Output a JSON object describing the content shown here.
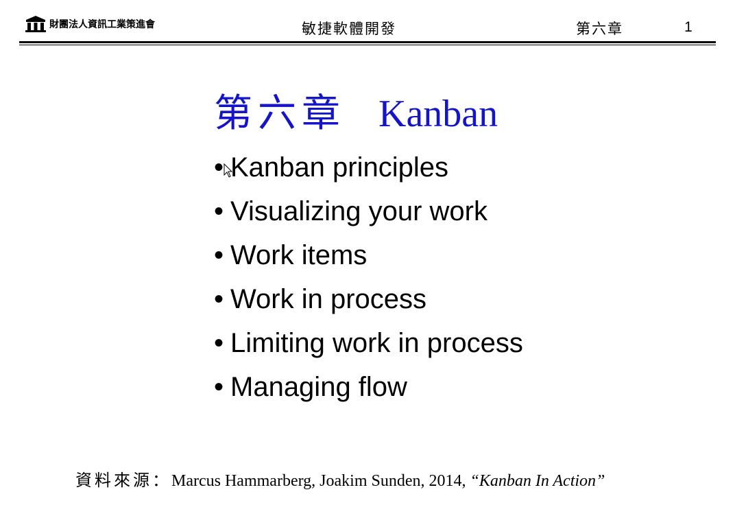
{
  "header": {
    "org_name": "財團法人資訊工業策進會",
    "course_title": "敏捷軟體開發",
    "chapter_label": "第六章",
    "page_number": "1"
  },
  "slide": {
    "title_zh": "第六章",
    "title_en": "Kanban",
    "title_color": "#1414c8",
    "bullet_symbol": "•",
    "bullets": [
      "Kanban principles",
      "Visualizing your work",
      "Work items",
      "Work in process",
      "Limiting work in process",
      "Managing flow"
    ]
  },
  "source": {
    "label": "資料來源：",
    "citation": "Marcus Hammarberg, Joakim Sunden, 2014, ",
    "book_title": "“Kanban In Action”"
  },
  "icons": {
    "logo": "institute-logo-icon",
    "cursor": "mouse-pointer-icon"
  }
}
